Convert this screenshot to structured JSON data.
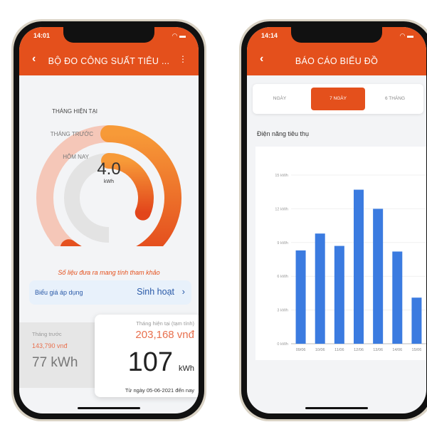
{
  "left_phone": {
    "time": "14:01",
    "title": "BỘ ĐO CÔNG SUẤT TIÊU ...",
    "gauge": {
      "labels": [
        "THÁNG HIỆN TẠI",
        "THÁNG TRƯỚC",
        "HÔM NAY"
      ],
      "value": "4.0",
      "unit": "kWh",
      "ring_fractions": {
        "current_month": 0.81,
        "previous_month": 0.42
      }
    },
    "note": "Số liệu đưa ra mang tính tham khảo",
    "tariff": {
      "label": "Biểu giá áp dụng",
      "value": "Sinh hoạt"
    },
    "previous": {
      "label": "Tháng trước",
      "cost": "143,790 vnđ",
      "energy": "77 kWh"
    },
    "current": {
      "label": "Tháng hiện tại (tạm tính)",
      "cost": "203,168 vnđ",
      "energy": "107",
      "unit": "kWh",
      "since": "Từ ngày 05-06-2021 đến nay"
    }
  },
  "right_phone": {
    "time": "14:14",
    "title": "BÁO CÁO BIỂU ĐỒ",
    "tabs": [
      {
        "label": "NGÀY",
        "active": false
      },
      {
        "label": "7 NGÀY",
        "active": true
      },
      {
        "label": "6 THÁNG",
        "active": false
      }
    ],
    "section_title": "Điện năng tiêu thụ"
  },
  "colors": {
    "brand": "#e4501c",
    "bar": "#3b7be0",
    "note": "#e4501c",
    "tariff_text": "#2a5aa8"
  },
  "chart_data": {
    "type": "bar",
    "categories": [
      "09/06",
      "10/06",
      "11/06",
      "12/06",
      "13/06",
      "14/06",
      "15/06"
    ],
    "values": [
      8.3,
      9.8,
      8.7,
      13.7,
      12.0,
      8.2,
      4.1
    ],
    "ylim": [
      0,
      15
    ],
    "yticks": [
      "0 kWh",
      "3 kWh",
      "6 kWh",
      "9 kWh",
      "12 kWh",
      "15 kWh"
    ],
    "ytick_values": [
      0,
      3,
      6,
      9,
      12,
      15
    ],
    "grid": true
  }
}
